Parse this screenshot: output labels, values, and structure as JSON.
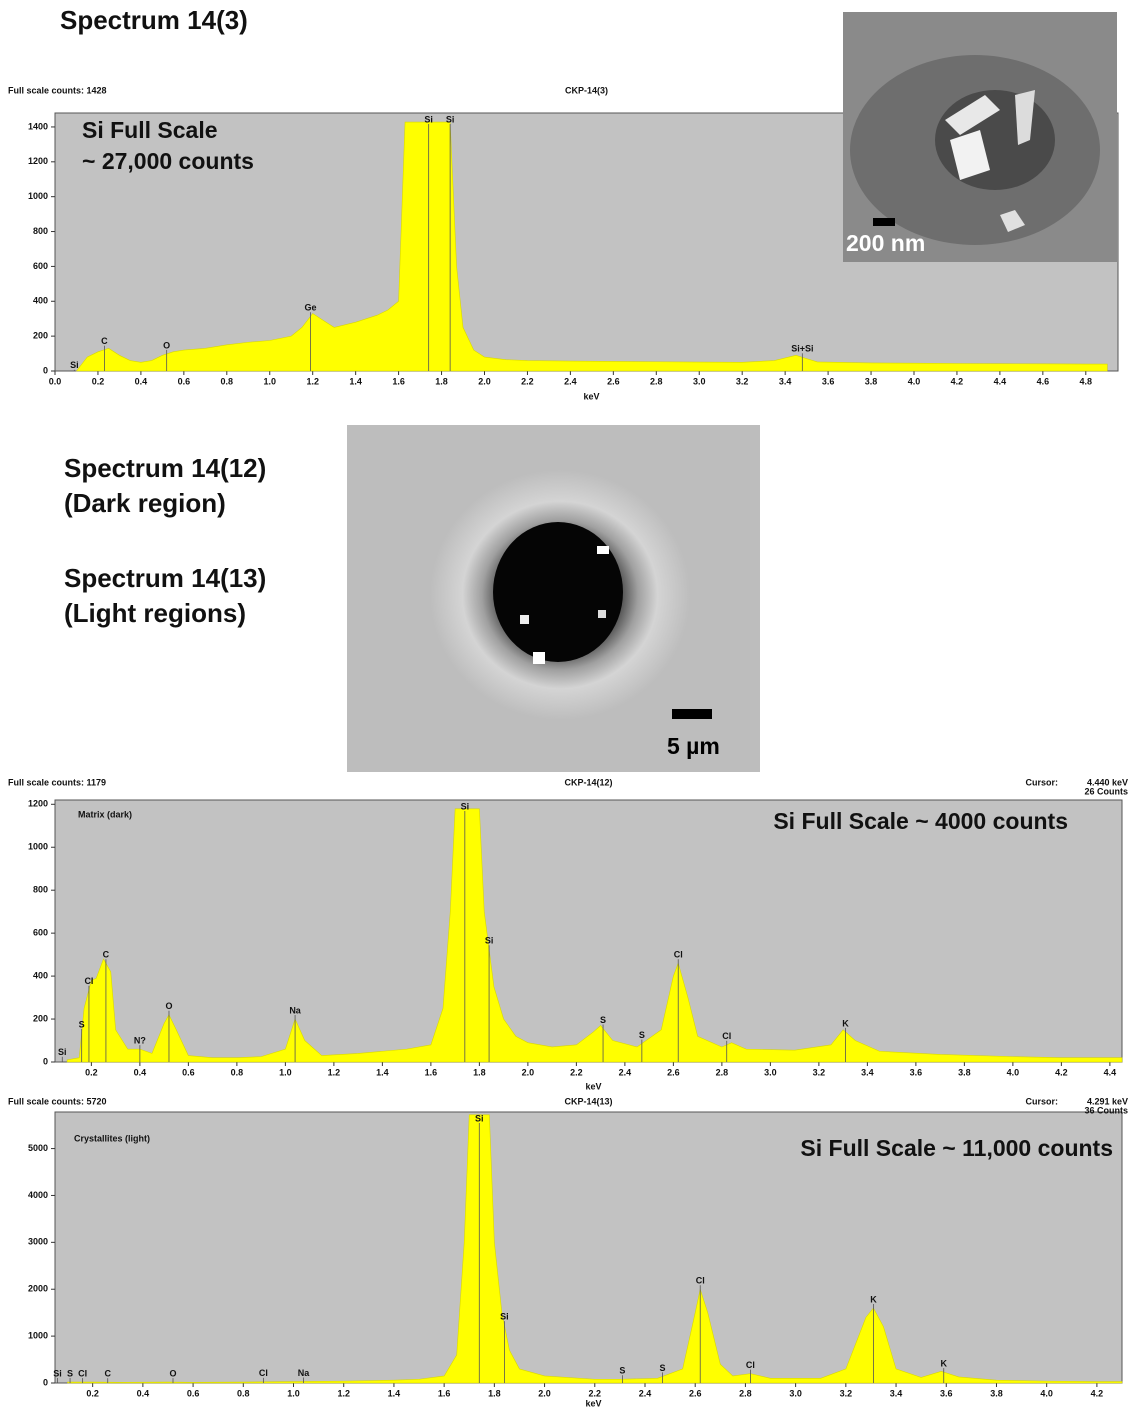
{
  "chart_data": [
    {
      "type": "area",
      "heading": [
        "Spectrum 14(3)"
      ],
      "header_left": "Full scale counts: 1428",
      "title": "CKP-14(3)",
      "x_label": "keV",
      "scale_note": [
        "Si Full Scale",
        "~ 27,000 counts"
      ],
      "image_scale_bar": "200 nm",
      "color": "#ffff00",
      "x": [
        0.1,
        0.15,
        0.2,
        0.25,
        0.3,
        0.35,
        0.4,
        0.45,
        0.5,
        0.55,
        0.6,
        0.7,
        0.8,
        0.9,
        1.0,
        1.1,
        1.15,
        1.2,
        1.25,
        1.3,
        1.4,
        1.5,
        1.55,
        1.6,
        1.63,
        1.7,
        1.8,
        1.84,
        1.87,
        1.9,
        1.95,
        2.0,
        2.1,
        2.2,
        2.4,
        2.6,
        2.8,
        3.0,
        3.2,
        3.35,
        3.45,
        3.55,
        3.8,
        4.0,
        4.2,
        4.4,
        4.6,
        4.8,
        4.9
      ],
      "values": [
        0,
        80,
        110,
        130,
        90,
        60,
        50,
        60,
        90,
        110,
        120,
        130,
        150,
        165,
        175,
        200,
        250,
        330,
        290,
        250,
        280,
        320,
        350,
        400,
        1428,
        1428,
        1428,
        1428,
        600,
        250,
        120,
        80,
        65,
        60,
        57,
        55,
        53,
        51,
        50,
        60,
        90,
        52,
        46,
        45,
        43,
        42,
        41,
        40,
        40
      ],
      "annotations": [
        {
          "text": "Si",
          "x": 0.09
        },
        {
          "text": "C",
          "x": 0.23
        },
        {
          "text": "O",
          "x": 0.52
        },
        {
          "text": "Ge",
          "x": 1.19
        },
        {
          "text": "Si",
          "x": 1.74
        },
        {
          "text": "Si",
          "x": 1.84
        },
        {
          "text": "Si+Si",
          "x": 3.48
        }
      ],
      "xlim": [
        0,
        4.95
      ],
      "ylim": [
        0,
        1480
      ],
      "xticks": [
        {
          "value": 0,
          "label": "0.0"
        },
        0.2,
        0.4,
        0.6,
        0.8,
        {
          "value": 1,
          "label": "1.0"
        },
        1.2,
        1.4,
        1.6,
        1.8,
        {
          "value": 2,
          "label": "2.0"
        },
        2.2,
        2.4,
        2.6,
        2.8,
        {
          "value": 3,
          "label": "3.0"
        },
        3.2,
        3.4,
        3.6,
        3.8,
        {
          "value": 4,
          "label": "4.0"
        },
        4.2,
        4.4,
        4.6,
        4.8
      ],
      "yticks": [
        0,
        200,
        400,
        600,
        800,
        1000,
        1200,
        1400
      ]
    },
    {
      "type": "area",
      "heading": [
        "Spectrum 14(12)",
        "(Dark region)"
      ],
      "header_left": "Full scale counts: 1179",
      "title": "CKP-14(12)",
      "x_label": "keV",
      "cursor": [
        "Cursor:",
        "4.440 keV",
        "26 Counts"
      ],
      "panel_label": "Matrix (dark)",
      "scale_note": [
        "Si Full Scale ~ 4000 counts"
      ],
      "image_scale_bar": "5 µm",
      "color": "#ffff00",
      "x": [
        0.1,
        0.15,
        0.17,
        0.2,
        0.22,
        0.25,
        0.28,
        0.3,
        0.35,
        0.4,
        0.45,
        0.5,
        0.52,
        0.55,
        0.6,
        0.7,
        0.8,
        0.9,
        1.0,
        1.04,
        1.08,
        1.15,
        1.3,
        1.5,
        1.6,
        1.65,
        1.68,
        1.7,
        1.8,
        1.82,
        1.86,
        1.9,
        1.95,
        2.0,
        2.1,
        2.2,
        2.27,
        2.3,
        2.35,
        2.45,
        2.55,
        2.6,
        2.62,
        2.66,
        2.7,
        2.8,
        2.84,
        2.9,
        3.1,
        3.25,
        3.3,
        3.35,
        3.45,
        3.7,
        4.0,
        4.2,
        4.4,
        4.45
      ],
      "values": [
        10,
        20,
        250,
        380,
        390,
        480,
        420,
        150,
        60,
        60,
        40,
        180,
        220,
        150,
        30,
        20,
        20,
        25,
        60,
        200,
        100,
        30,
        40,
        60,
        80,
        250,
        700,
        1179,
        1179,
        700,
        350,
        200,
        120,
        90,
        70,
        80,
        140,
        170,
        100,
        70,
        150,
        400,
        460,
        300,
        120,
        70,
        90,
        60,
        55,
        80,
        150,
        100,
        50,
        35,
        25,
        20,
        20,
        20
      ],
      "annotations": [
        {
          "text": "Si",
          "x": 0.08
        },
        {
          "text": "S",
          "x": 0.16
        },
        {
          "text": "Cl",
          "x": 0.19
        },
        {
          "text": "C",
          "x": 0.26
        },
        {
          "text": "N?",
          "x": 0.4
        },
        {
          "text": "O",
          "x": 0.52
        },
        {
          "text": "Na",
          "x": 1.04
        },
        {
          "text": "Si",
          "x": 1.74
        },
        {
          "text": "Si",
          "x": 1.84
        },
        {
          "text": "S",
          "x": 2.31
        },
        {
          "text": "S",
          "x": 2.47
        },
        {
          "text": "Cl",
          "x": 2.62
        },
        {
          "text": "Cl",
          "x": 2.82
        },
        {
          "text": "K",
          "x": 3.31
        }
      ],
      "xlim": [
        0.05,
        4.45
      ],
      "ylim": [
        0,
        1220
      ],
      "xticks": [
        0.2,
        0.4,
        0.6,
        0.8,
        {
          "value": 1,
          "label": "1.0"
        },
        1.2,
        1.4,
        1.6,
        1.8,
        {
          "value": 2,
          "label": "2.0"
        },
        2.2,
        2.4,
        2.6,
        2.8,
        {
          "value": 3,
          "label": "3.0"
        },
        3.2,
        3.4,
        3.6,
        3.8,
        {
          "value": 4,
          "label": "4.0"
        },
        4.2,
        4.4
      ],
      "yticks": [
        0,
        200,
        400,
        600,
        800,
        1000,
        1200
      ]
    },
    {
      "type": "area",
      "heading": [
        "Spectrum 14(13)",
        "(Light regions)"
      ],
      "header_left": "Full scale counts: 5720",
      "title": "CKP-14(13)",
      "x_label": "keV",
      "cursor": [
        "Cursor:",
        "4.291 keV",
        "36 Counts"
      ],
      "panel_label": "Crystallites (light)",
      "scale_note": [
        "Si Full Scale ~ 11,000 counts"
      ],
      "color": "#ffff00",
      "x": [
        0.1,
        0.2,
        0.3,
        0.5,
        0.6,
        0.8,
        1.0,
        1.2,
        1.4,
        1.5,
        1.6,
        1.65,
        1.68,
        1.7,
        1.78,
        1.8,
        1.83,
        1.86,
        1.9,
        2.0,
        2.2,
        2.3,
        2.45,
        2.55,
        2.6,
        2.62,
        2.65,
        2.7,
        2.75,
        2.82,
        2.9,
        3.1,
        3.2,
        3.28,
        3.31,
        3.35,
        3.4,
        3.5,
        3.58,
        3.65,
        3.8,
        4.0,
        4.2,
        4.3
      ],
      "values": [
        20,
        20,
        15,
        20,
        15,
        20,
        30,
        40,
        60,
        80,
        150,
        600,
        3000,
        5720,
        5720,
        3000,
        1500,
        700,
        300,
        150,
        80,
        80,
        100,
        300,
        1500,
        2000,
        1500,
        400,
        150,
        200,
        100,
        100,
        300,
        1400,
        1600,
        1200,
        300,
        120,
        250,
        130,
        60,
        40,
        30,
        30
      ],
      "annotations": [
        {
          "text": "Si",
          "x": 0.06
        },
        {
          "text": "S",
          "x": 0.11
        },
        {
          "text": "Cl",
          "x": 0.16
        },
        {
          "text": "C",
          "x": 0.26
        },
        {
          "text": "O",
          "x": 0.52
        },
        {
          "text": "Cl",
          "x": 0.88
        },
        {
          "text": "Na",
          "x": 1.04
        },
        {
          "text": "Si",
          "x": 1.74
        },
        {
          "text": "Si",
          "x": 1.84
        },
        {
          "text": "S",
          "x": 2.31
        },
        {
          "text": "S",
          "x": 2.47
        },
        {
          "text": "Cl",
          "x": 2.62
        },
        {
          "text": "Cl",
          "x": 2.82
        },
        {
          "text": "K",
          "x": 3.31
        },
        {
          "text": "K",
          "x": 3.59
        }
      ],
      "xlim": [
        0.05,
        4.3
      ],
      "ylim": [
        0,
        5780
      ],
      "xticks": [
        0.2,
        0.4,
        0.6,
        0.8,
        {
          "value": 1,
          "label": "1.0"
        },
        1.2,
        1.4,
        1.6,
        1.8,
        {
          "value": 2,
          "label": "2.0"
        },
        2.2,
        2.4,
        2.6,
        2.8,
        {
          "value": 3,
          "label": "3.0"
        },
        3.2,
        3.4,
        3.6,
        3.8,
        {
          "value": 4,
          "label": "4.0"
        },
        4.2
      ],
      "yticks": [
        0,
        1000,
        2000,
        3000,
        4000,
        5000
      ]
    }
  ]
}
